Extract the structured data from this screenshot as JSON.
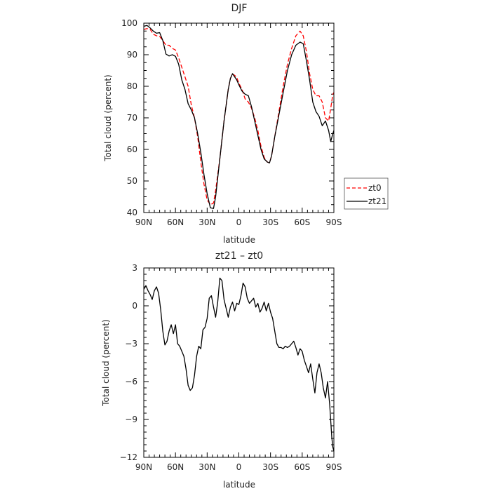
{
  "chart_data": [
    {
      "type": "line",
      "title": "DJF",
      "xlabel": "latitude",
      "ylabel": "Total cloud (percent)",
      "xlim": [
        90,
        -90
      ],
      "ylim": [
        40,
        100
      ],
      "x_ticks": [
        {
          "value": 90,
          "label": "90N"
        },
        {
          "value": 60,
          "label": "60N"
        },
        {
          "value": 30,
          "label": "30N"
        },
        {
          "value": 0,
          "label": "0"
        },
        {
          "value": -30,
          "label": "30S"
        },
        {
          "value": -60,
          "label": "60S"
        },
        {
          "value": -90,
          "label": "90S"
        }
      ],
      "y_ticks": [
        40,
        50,
        60,
        70,
        80,
        90,
        100
      ],
      "legend_position": "right",
      "series": [
        {
          "name": "zt0",
          "color": "#ff0000",
          "dash": "dashed",
          "x": [
            90,
            87,
            84,
            81,
            78,
            75,
            72,
            69,
            66,
            63,
            60,
            57,
            54,
            51,
            48,
            45,
            42,
            39,
            36,
            33,
            30,
            27,
            24,
            22,
            20,
            18,
            16,
            14,
            12,
            10,
            8,
            6,
            4,
            2,
            0,
            -3,
            -6,
            -9,
            -12,
            -15,
            -18,
            -21,
            -24,
            -27,
            -29,
            -31,
            -34,
            -38,
            -42,
            -46,
            -50,
            -54,
            -58,
            -61,
            -64,
            -67,
            -70,
            -73,
            -76,
            -79,
            -82,
            -85,
            -87,
            -89,
            -90
          ],
          "y": [
            98,
            98.3,
            98.1,
            96.5,
            96,
            95.8,
            94.5,
            93,
            93,
            92,
            91.5,
            89,
            86,
            83,
            80,
            74,
            70,
            64,
            56,
            49,
            44,
            42.5,
            43,
            47,
            52,
            57,
            63,
            69,
            74,
            79,
            82.5,
            83.8,
            83.5,
            82.8,
            81,
            79,
            76,
            75,
            73,
            70,
            66,
            61,
            57.5,
            56,
            55.7,
            58,
            64,
            72,
            80,
            87,
            92,
            96,
            97.5,
            96,
            91,
            84,
            79,
            77,
            77,
            75,
            70,
            69,
            73,
            77.5,
            78
          ]
        },
        {
          "name": "zt21",
          "color": "#000000",
          "dash": "solid",
          "x": [
            90,
            87,
            84,
            81,
            78,
            75,
            72,
            69,
            66,
            63,
            60,
            57,
            54,
            51,
            48,
            45,
            42,
            39,
            36,
            33,
            30,
            27,
            24,
            22,
            20,
            18,
            16,
            14,
            12,
            10,
            8,
            6,
            4,
            2,
            0,
            -3,
            -6,
            -9,
            -12,
            -15,
            -18,
            -21,
            -24,
            -27,
            -29,
            -31,
            -34,
            -38,
            -42,
            -46,
            -50,
            -54,
            -58,
            -61,
            -64,
            -67,
            -70,
            -73,
            -76,
            -79,
            -82,
            -85,
            -87,
            -89,
            -90
          ],
          "y": [
            99,
            99.3,
            98.5,
            97.5,
            96.8,
            97,
            94.5,
            90.2,
            89.6,
            90,
            89.5,
            87,
            82,
            79,
            74.5,
            72.5,
            70,
            65,
            59,
            52,
            46,
            41.5,
            41.3,
            45,
            51,
            57,
            63,
            69,
            74,
            79,
            82.5,
            84,
            83,
            82,
            80.5,
            78.5,
            77.5,
            77,
            73.5,
            69,
            64.5,
            60,
            57,
            56,
            55.7,
            58,
            64,
            71,
            78,
            85,
            90,
            93,
            94,
            93.5,
            88,
            82,
            75,
            72,
            70.5,
            67.5,
            69,
            66,
            62.5,
            65,
            66
          ]
        }
      ]
    },
    {
      "type": "line",
      "title": "zt21 – zt0",
      "xlabel": "latitude",
      "ylabel": "Total cloud (percent)",
      "xlim": [
        90,
        -90
      ],
      "ylim": [
        -12,
        3
      ],
      "x_ticks": [
        {
          "value": 90,
          "label": "90N"
        },
        {
          "value": 60,
          "label": "60N"
        },
        {
          "value": 30,
          "label": "30N"
        },
        {
          "value": 0,
          "label": "0"
        },
        {
          "value": -30,
          "label": "30S"
        },
        {
          "value": -60,
          "label": "60S"
        },
        {
          "value": -90,
          "label": "90S"
        }
      ],
      "y_ticks": [
        3,
        0,
        -3,
        -6,
        -9,
        -12
      ],
      "series": [
        {
          "color": "#000000",
          "dash": "solid",
          "x": [
            90,
            88,
            86,
            84,
            82,
            80,
            78,
            76,
            74,
            72,
            70,
            68,
            66,
            64,
            62,
            60,
            58,
            56,
            54,
            52,
            50,
            48,
            46,
            44,
            42,
            40,
            38,
            36,
            34,
            32,
            30,
            28,
            26,
            24,
            22,
            20,
            18,
            16,
            14,
            12,
            10,
            8,
            6,
            4,
            2,
            0,
            -2,
            -4,
            -6,
            -8,
            -10,
            -12,
            -14,
            -16,
            -18,
            -20,
            -22,
            -24,
            -26,
            -28,
            -30,
            -32,
            -34,
            -36,
            -38,
            -40,
            -42,
            -44,
            -46,
            -48,
            -50,
            -52,
            -54,
            -56,
            -58,
            -60,
            -62,
            -64,
            -66,
            -68,
            -70,
            -72,
            -74,
            -76,
            -78,
            -80,
            -82,
            -84,
            -86,
            -88,
            -89,
            -90
          ],
          "y": [
            1.3,
            1.6,
            1.2,
            0.9,
            0.5,
            1.2,
            1.5,
            1.0,
            -0.3,
            -2.0,
            -3.1,
            -2.8,
            -2.0,
            -1.5,
            -2.2,
            -1.5,
            -3.0,
            -3.2,
            -3.6,
            -4.0,
            -5.0,
            -6.3,
            -6.7,
            -6.5,
            -5.5,
            -4.0,
            -3.2,
            -3.4,
            -1.9,
            -1.7,
            -1.0,
            0.6,
            0.8,
            -0.1,
            -0.9,
            0.3,
            2.2,
            2.0,
            0.5,
            -0.2,
            -0.9,
            -0.1,
            0.3,
            -0.4,
            0.2,
            0.1,
            0.8,
            1.8,
            1.5,
            0.6,
            0.2,
            0.4,
            0.6,
            -0.1,
            0.2,
            -0.5,
            -0.2,
            0.3,
            -0.4,
            0.2,
            -0.5,
            -1.0,
            -2.0,
            -3.0,
            -3.3,
            -3.3,
            -3.4,
            -3.2,
            -3.3,
            -3.2,
            -3.0,
            -2.8,
            -3.3,
            -3.9,
            -3.4,
            -3.6,
            -4.3,
            -4.8,
            -5.3,
            -4.6,
            -5.8,
            -6.9,
            -5.3,
            -4.6,
            -5.3,
            -6.5,
            -7.3,
            -6.0,
            -7.8,
            -10.4,
            -11.2,
            -11.5
          ]
        }
      ]
    }
  ]
}
